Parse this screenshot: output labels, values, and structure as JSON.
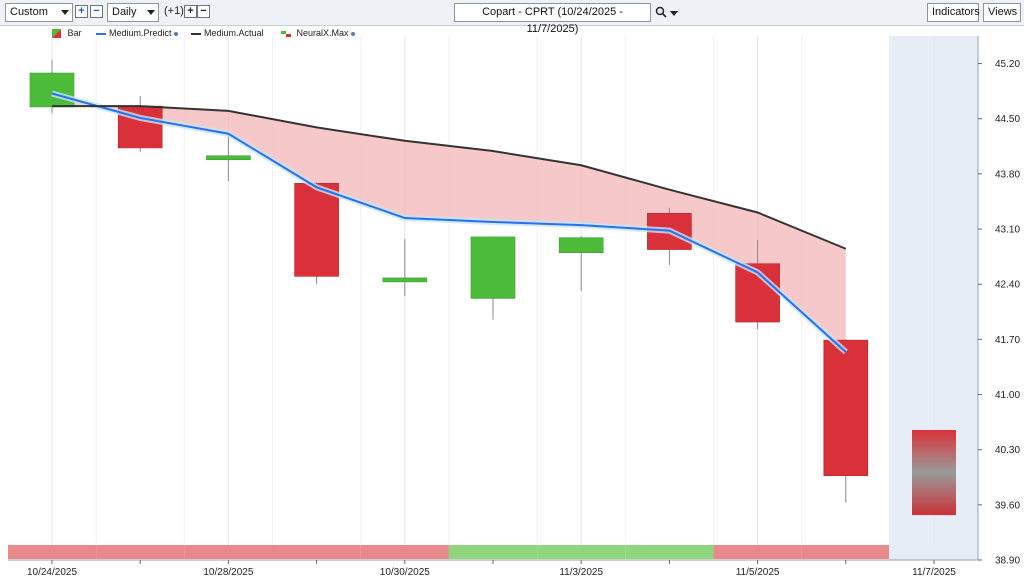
{
  "toolbar": {
    "custom_select": "Custom",
    "plus": "+",
    "minus": "−",
    "interval_select": "Daily",
    "offset": "(+1)",
    "offset_plus": "+",
    "offset_minus": "−",
    "title": "Copart - CPRT (10/24/2025 - 11/7/2025)",
    "indicators": "Indicators",
    "views": "Views"
  },
  "legend": {
    "bar": "Bar",
    "predict": "Medium.Predict",
    "actual": "Medium.Actual",
    "neural": "NeuralX.Max"
  },
  "colors": {
    "up": "#4cbb3a",
    "down": "#d9303a",
    "predict": "#2f6df0",
    "actual": "#333333",
    "fill": "#f3b6b8",
    "band_red": "#e88a8c",
    "band_green": "#8fd67f",
    "forecast_bg": "#e6edf7"
  },
  "chart_data": {
    "type": "candlestick",
    "x_labels": [
      "10/24/2025",
      "",
      "10/28/2025",
      "",
      "10/30/2025",
      "",
      "11/3/2025",
      "",
      "11/5/2025",
      "",
      "11/7/2025"
    ],
    "ylim": [
      38.9,
      45.55
    ],
    "yticks": [
      "45.20",
      "44.50",
      "43.80",
      "43.10",
      "42.40",
      "41.70",
      "41.00",
      "40.30",
      "39.60",
      "38.90"
    ],
    "candles": [
      {
        "x": "10/24/2025",
        "open": 44.65,
        "close": 45.08,
        "high": 45.25,
        "low": 44.57
      },
      {
        "x": "10/27/2025",
        "open": 44.66,
        "close": 44.13,
        "high": 44.79,
        "low": 44.08
      },
      {
        "x": "10/28/2025",
        "open": 43.98,
        "close": 44.03,
        "high": 44.32,
        "low": 43.71
      },
      {
        "x": "10/29/2025",
        "open": 43.68,
        "close": 42.5,
        "high": 43.69,
        "low": 42.4
      },
      {
        "x": "10/30/2025",
        "open": 42.43,
        "close": 42.48,
        "high": 42.97,
        "low": 42.25
      },
      {
        "x": "10/31/2025",
        "open": 42.22,
        "close": 43.0,
        "high": 43.0,
        "low": 41.95
      },
      {
        "x": "11/3/2025",
        "open": 42.8,
        "close": 42.99,
        "high": 43.01,
        "low": 42.31
      },
      {
        "x": "11/4/2025",
        "open": 43.3,
        "close": 42.84,
        "high": 43.37,
        "low": 42.64
      },
      {
        "x": "11/5/2025",
        "open": 42.66,
        "close": 41.92,
        "high": 42.96,
        "low": 41.83
      },
      {
        "x": "11/6/2025",
        "open": 41.69,
        "close": 39.97,
        "high": 41.7,
        "low": 39.63
      }
    ],
    "predict": [
      44.82,
      44.51,
      44.31,
      43.63,
      43.24,
      43.19,
      43.15,
      43.08,
      42.55,
      41.54
    ],
    "actual": [
      44.66,
      44.66,
      44.6,
      44.39,
      44.22,
      44.09,
      43.91,
      43.6,
      43.31,
      42.85
    ],
    "neural_forecast": {
      "x": "11/7/2025",
      "high": 40.55,
      "low": 39.47
    },
    "band": [
      "down",
      "down",
      "down",
      "down",
      "down",
      "up",
      "up",
      "up",
      "down",
      "down"
    ]
  }
}
